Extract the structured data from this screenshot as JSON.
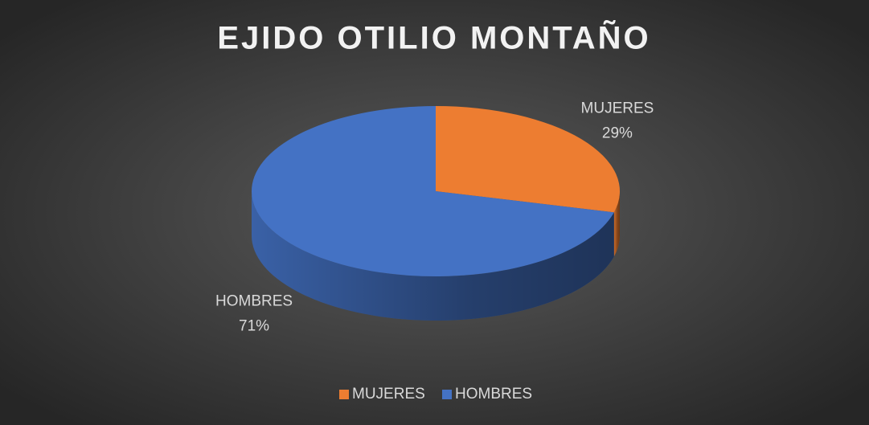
{
  "chart_data": {
    "type": "pie",
    "title": "EJIDO OTILIO MONTAÑO",
    "categories": [
      "MUJERES",
      "HOMBRES"
    ],
    "values": [
      29,
      71
    ],
    "value_labels": [
      "29%",
      "71%"
    ],
    "colors": [
      "#ed7d31",
      "#4472c4"
    ],
    "legend": "bottom"
  }
}
